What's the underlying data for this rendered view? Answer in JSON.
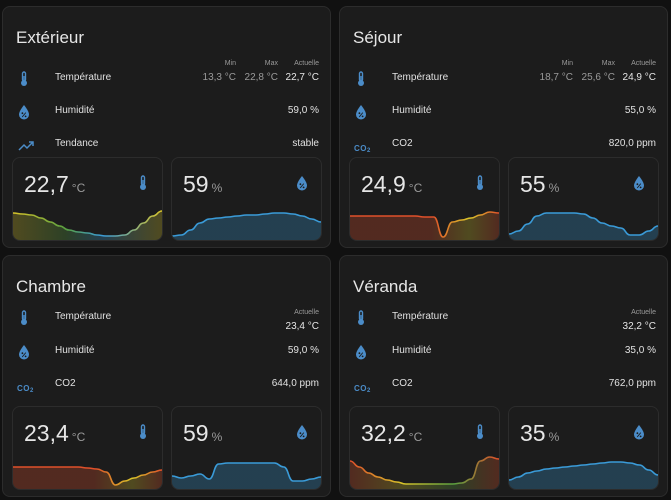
{
  "cards": [
    {
      "title": "Extérieur",
      "rows": [
        {
          "icon": "thermometer-icon",
          "label": "Température",
          "stats": [
            {
              "h": "Min",
              "v": "13,3 °C"
            },
            {
              "h": "Max",
              "v": "22,8 °C"
            },
            {
              "h": "Actuelle",
              "v": "22,7 °C"
            }
          ]
        },
        {
          "icon": "humidity-icon",
          "label": "Humidité",
          "value": "59,0 %"
        },
        {
          "icon": "trend-icon",
          "label": "Tendance",
          "value": "stable"
        }
      ],
      "tiles": [
        {
          "value": "22,7",
          "unit": "°C",
          "icon": "thermometer-icon",
          "gradient": "tempA",
          "points": [
            0.27,
            0.26,
            0.25,
            0.22,
            0.18,
            0.14,
            0.1,
            0.08,
            0.07,
            0.05,
            0.04,
            0.04,
            0.05,
            0.1,
            0.17,
            0.24,
            0.29
          ]
        },
        {
          "value": "59",
          "unit": "%",
          "icon": "humidity-icon",
          "gradient": "hum",
          "points": [
            0.04,
            0.05,
            0.1,
            0.17,
            0.21,
            0.22,
            0.23,
            0.24,
            0.25,
            0.25,
            0.26,
            0.27,
            0.27,
            0.26,
            0.24,
            0.21,
            0.18
          ]
        }
      ]
    },
    {
      "title": "Séjour",
      "rows": [
        {
          "icon": "thermometer-icon",
          "label": "Température",
          "stats": [
            {
              "h": "Min",
              "v": "18,7 °C"
            },
            {
              "h": "Max",
              "v": "25,6 °C"
            },
            {
              "h": "Actuelle",
              "v": "24,9 °C"
            }
          ]
        },
        {
          "icon": "humidity-icon",
          "label": "Humidité",
          "value": "55,0 %"
        },
        {
          "icon": "co2-icon",
          "label": "CO2",
          "value": "820,0 ppm"
        }
      ],
      "tiles": [
        {
          "value": "24,9",
          "unit": "°C",
          "icon": "thermometer-icon",
          "gradient": "tempB",
          "points": [
            0.24,
            0.24,
            0.24,
            0.24,
            0.24,
            0.24,
            0.24,
            0.24,
            0.23,
            0.23,
            0.03,
            0.18,
            0.2,
            0.22,
            0.25,
            0.28,
            0.27
          ]
        },
        {
          "value": "55",
          "unit": "%",
          "icon": "humidity-icon",
          "gradient": "hum",
          "points": [
            0.06,
            0.09,
            0.16,
            0.24,
            0.27,
            0.27,
            0.27,
            0.27,
            0.26,
            0.22,
            0.17,
            0.14,
            0.12,
            0.05,
            0.05,
            0.09,
            0.14
          ]
        }
      ]
    },
    {
      "title": "Chambre",
      "rows": [
        {
          "icon": "thermometer-icon",
          "label": "Température",
          "stats": [
            {
              "h": "Actuelle",
              "v": "23,4 °C"
            }
          ]
        },
        {
          "icon": "humidity-icon",
          "label": "Humidité",
          "value": "59,0 %"
        },
        {
          "icon": "co2-icon",
          "label": "CO2",
          "value": "644,0 ppm"
        }
      ],
      "tiles": [
        {
          "value": "23,4",
          "unit": "°C",
          "icon": "thermometer-icon",
          "gradient": "tempB",
          "points": [
            0.22,
            0.22,
            0.22,
            0.22,
            0.22,
            0.22,
            0.22,
            0.22,
            0.21,
            0.2,
            0.17,
            0.04,
            0.08,
            0.11,
            0.14,
            0.17,
            0.19
          ]
        },
        {
          "value": "59",
          "unit": "%",
          "icon": "humidity-icon",
          "gradient": "hum",
          "points": [
            0.13,
            0.11,
            0.13,
            0.15,
            0.1,
            0.25,
            0.26,
            0.26,
            0.26,
            0.26,
            0.26,
            0.26,
            0.22,
            0.08,
            0.08,
            0.1,
            0.12
          ]
        }
      ]
    },
    {
      "title": "Véranda",
      "rows": [
        {
          "icon": "thermometer-icon",
          "label": "Température",
          "stats": [
            {
              "h": "Actuelle",
              "v": "32,2 °C"
            }
          ]
        },
        {
          "icon": "humidity-icon",
          "label": "Humidité",
          "value": "35,0 %"
        },
        {
          "icon": "co2-icon",
          "label": "CO2",
          "value": "762,0 ppm"
        }
      ],
      "tiles": [
        {
          "value": "32,2",
          "unit": "°C",
          "icon": "thermometer-icon",
          "gradient": "tempC",
          "points": [
            0.28,
            0.22,
            0.16,
            0.12,
            0.09,
            0.07,
            0.05,
            0.05,
            0.05,
            0.05,
            0.05,
            0.05,
            0.06,
            0.1,
            0.28,
            0.32,
            0.3
          ]
        },
        {
          "value": "35",
          "unit": "%",
          "icon": "humidity-icon",
          "gradient": "hum",
          "points": [
            0.09,
            0.12,
            0.16,
            0.18,
            0.2,
            0.21,
            0.22,
            0.23,
            0.24,
            0.25,
            0.26,
            0.27,
            0.27,
            0.26,
            0.24,
            0.19,
            0.14
          ]
        }
      ]
    }
  ],
  "colors": {
    "icon": "#4b8cc8",
    "humidity_line": "#3a9bd8",
    "temp_warm": "#e0502a",
    "temp_mid": "#d8c42a",
    "temp_cool": "#5aa040",
    "temp_cold": "#3a9bd8"
  }
}
